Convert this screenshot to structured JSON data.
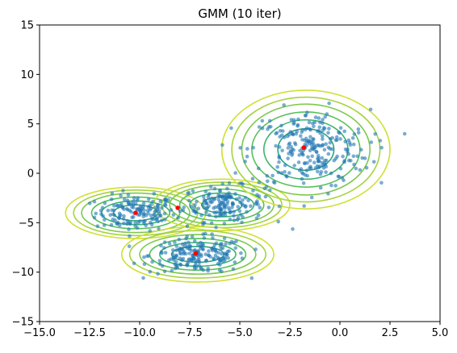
{
  "chart_data": {
    "type": "scatter",
    "title": "GMM (10 iter)",
    "xlabel": "",
    "ylabel": "",
    "xlim": [
      -15,
      5
    ],
    "ylim": [
      -15,
      15
    ],
    "xticks": [
      -15.0,
      -12.5,
      -10.0,
      -7.5,
      -5.0,
      -2.5,
      0.0,
      2.5,
      5.0
    ],
    "xtick_labels": [
      "−15.0",
      "−12.5",
      "−10.0",
      "−7.5",
      "−5.0",
      "−2.5",
      "0.0",
      "2.5",
      "5.0"
    ],
    "yticks": [
      -15,
      -10,
      -5,
      0,
      5,
      10,
      15
    ],
    "ytick_labels": [
      "−15",
      "−10",
      "−5",
      "0",
      "5",
      "10",
      "15"
    ],
    "grid": false,
    "colors": {
      "points": "#1f77b4",
      "centers": "#ff0000",
      "contour_levels": [
        "#2b8f8a",
        "#2ea57e",
        "#3bb46e",
        "#57c15a",
        "#7cc94a",
        "#a6d43e",
        "#cfe033",
        "#f2e42a"
      ]
    },
    "clusters": [
      {
        "center": [
          -10.2,
          -4.0
        ],
        "spread": [
          1.0,
          0.9
        ],
        "n": 150
      },
      {
        "center": [
          -5.8,
          -3.1
        ],
        "spread": [
          1.0,
          0.9
        ],
        "n": 160
      },
      {
        "center": [
          -7.1,
          -8.3
        ],
        "spread": [
          1.2,
          0.9
        ],
        "n": 190
      },
      {
        "center": [
          -1.5,
          2.4
        ],
        "spread": [
          1.5,
          2.0
        ],
        "n": 260
      }
    ],
    "gmm_means": [
      [
        -10.2,
        -4.0
      ],
      [
        -8.1,
        -3.5
      ],
      [
        -1.8,
        2.6
      ],
      [
        -7.2,
        -8.1
      ]
    ],
    "contour_rings": [
      {
        "cx": -10.2,
        "cy": -4.0,
        "rx": [
          1.1,
          1.7,
          2.2,
          2.7,
          3.1,
          3.5
        ],
        "ry": [
          0.8,
          1.2,
          1.6,
          2.0,
          2.3,
          2.6
        ]
      },
      {
        "cx": -5.9,
        "cy": -3.2,
        "rx": [
          1.0,
          1.6,
          2.1,
          2.6,
          3.0,
          3.4
        ],
        "ry": [
          0.8,
          1.2,
          1.6,
          2.0,
          2.3,
          2.6
        ]
      },
      {
        "cx": -7.1,
        "cy": -8.2,
        "rx": [
          1.3,
          1.9,
          2.4,
          2.9,
          3.4,
          3.8
        ],
        "ry": [
          0.8,
          1.2,
          1.6,
          2.0,
          2.4,
          2.8
        ]
      },
      {
        "cx": -1.7,
        "cy": 2.4,
        "rx": [
          1.4,
          2.1,
          2.7,
          3.2,
          3.7,
          4.2
        ],
        "ry": [
          2.1,
          3.0,
          3.8,
          4.6,
          5.3,
          6.0
        ]
      }
    ]
  }
}
